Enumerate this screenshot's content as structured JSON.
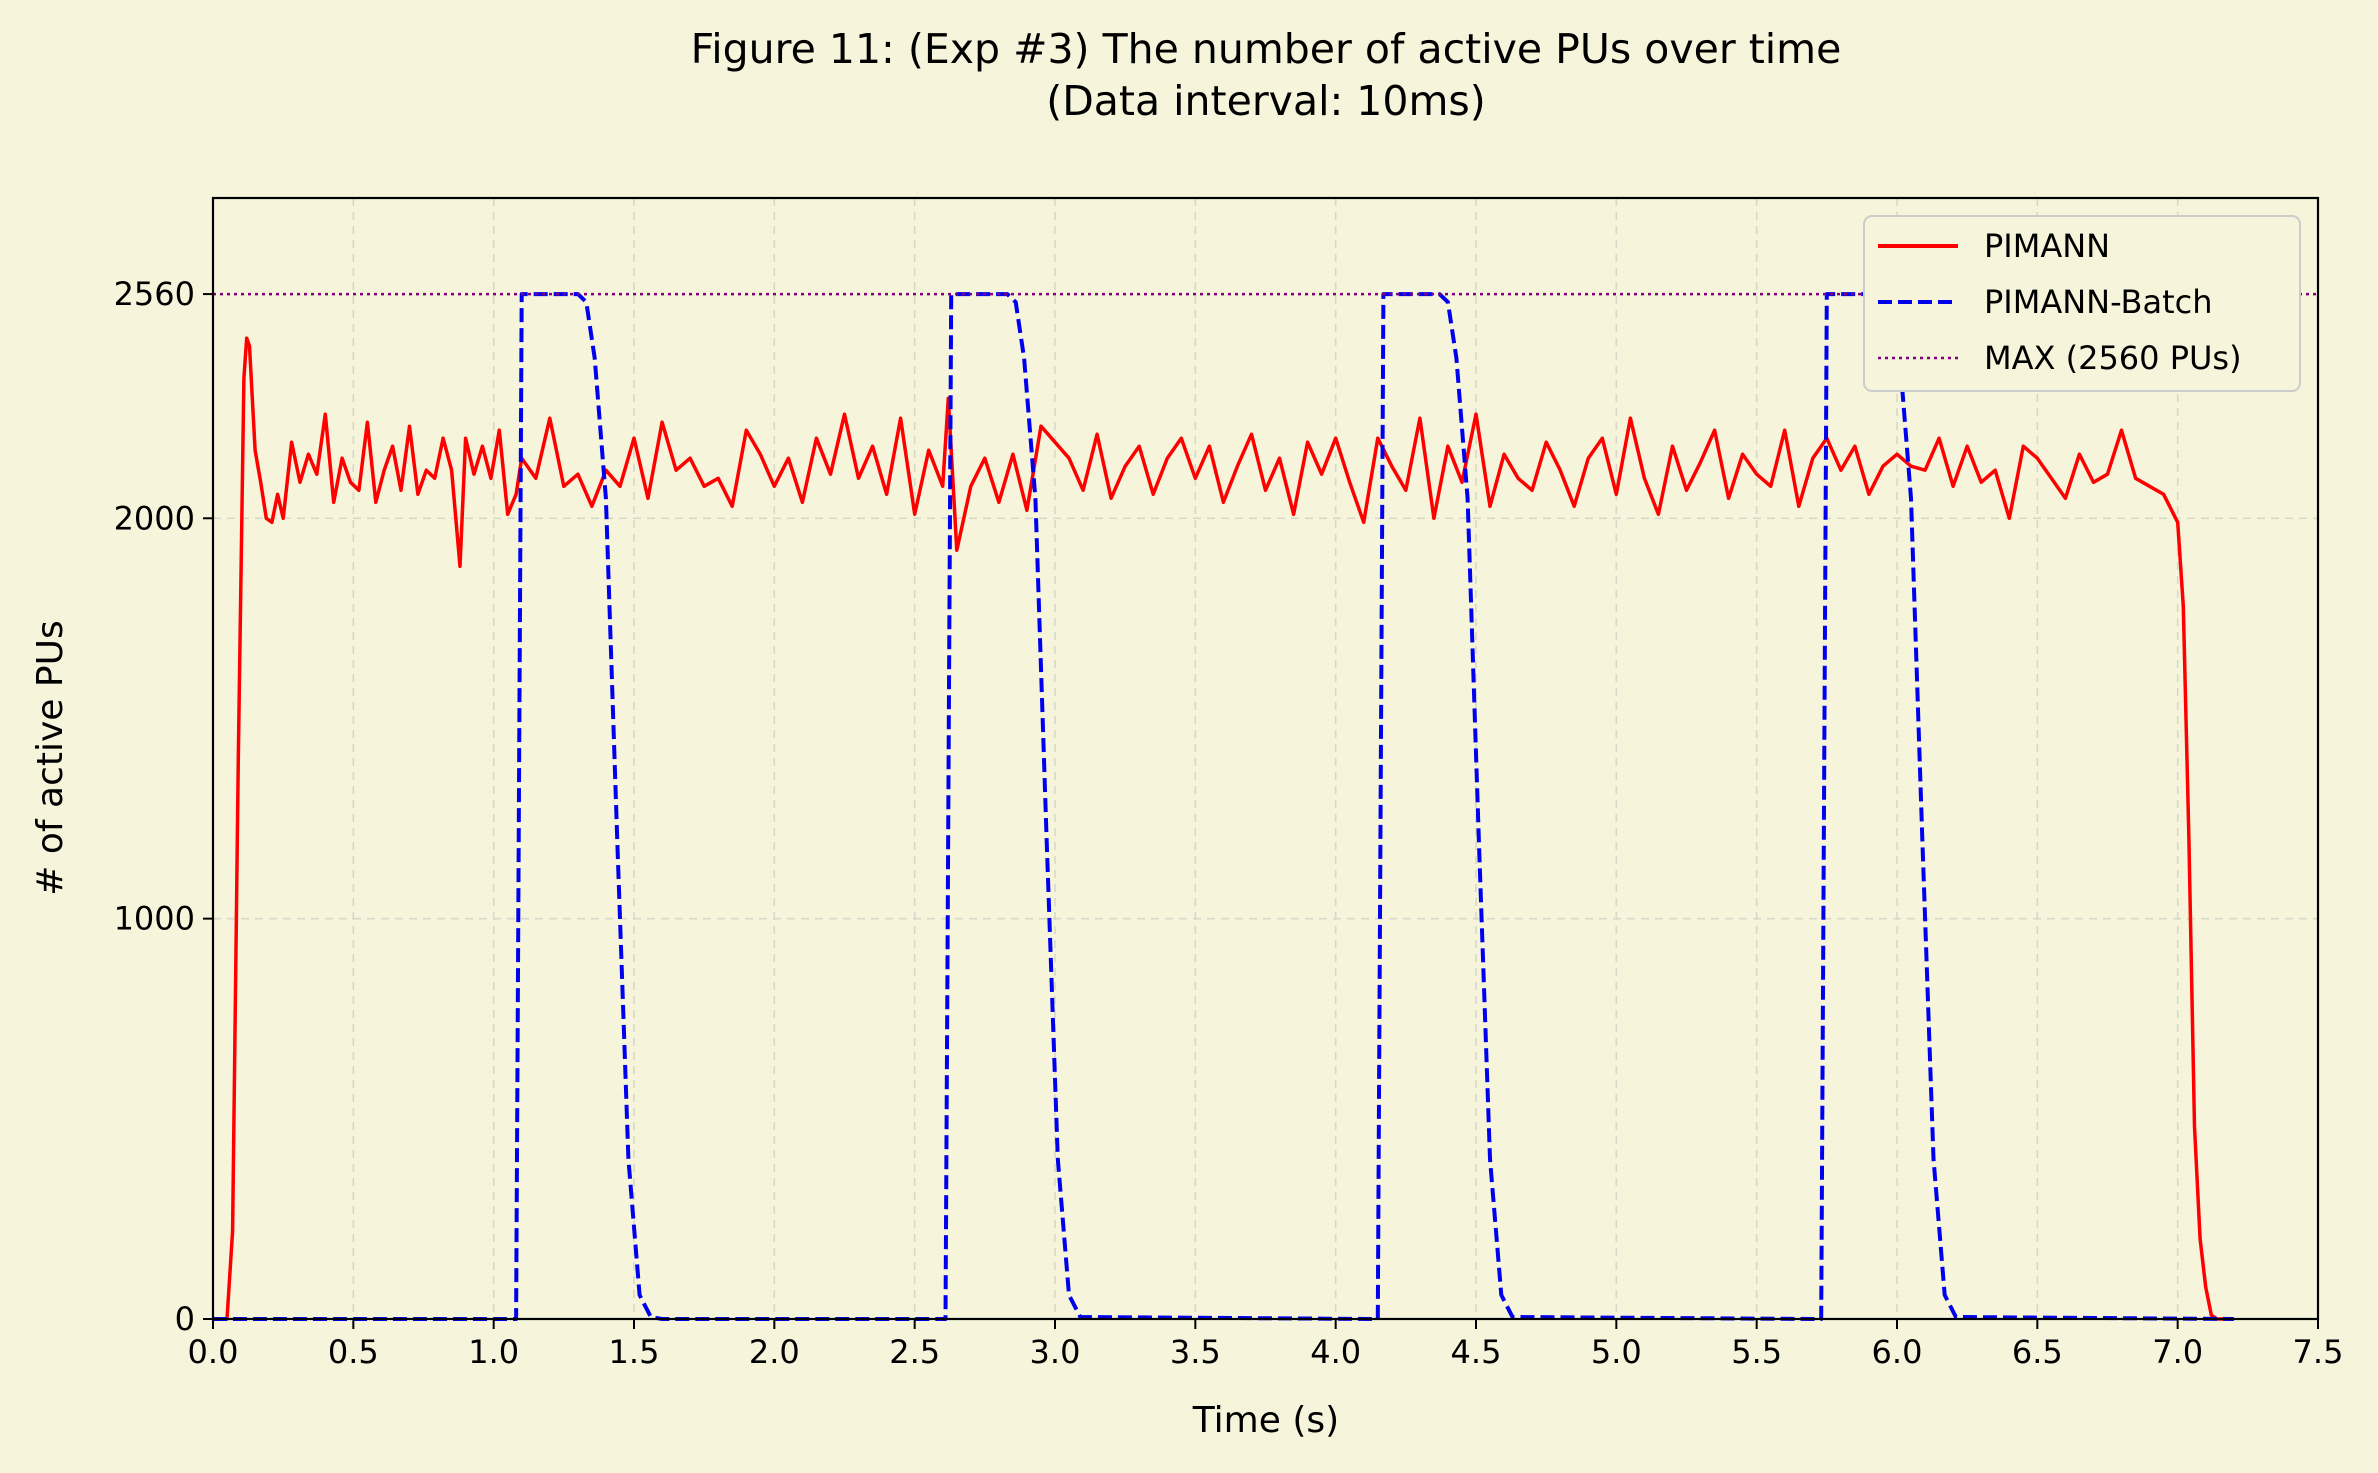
{
  "chart_data": {
    "type": "line",
    "title": "Figure 11: (Exp #3) The number of active PUs over time",
    "subtitle": "(Data interval: 10ms)",
    "xlabel": "Time (s)",
    "ylabel": "# of active PUs",
    "xlim": [
      0,
      7.5
    ],
    "ylim": [
      0,
      2800
    ],
    "xticks": [
      0,
      0.5,
      1,
      1.5,
      2,
      2.5,
      3,
      3.5,
      4,
      4.5,
      5,
      5.5,
      6,
      6.5,
      7,
      7.5
    ],
    "xtick_labels": [
      "0.0",
      "0.5",
      "1.0",
      "1.5",
      "2.0",
      "2.5",
      "3.0",
      "3.5",
      "4.0",
      "4.5",
      "5.0",
      "5.5",
      "6.0",
      "6.5",
      "7.0",
      "7.5"
    ],
    "yticks": [
      0,
      1000,
      2000,
      2560
    ],
    "ytick_labels": [
      "0",
      "1000",
      "2000",
      "2560"
    ],
    "grid": true,
    "legend_position": "top-right",
    "colors": {
      "pimann": "#ff0000",
      "batch": "#0000ee",
      "max": "#800080",
      "background": "#f6f5dc",
      "grid": "#d8d8c8"
    },
    "series": [
      {
        "name": "PIMANN",
        "style": "solid",
        "x": [
          0.0,
          0.05,
          0.07,
          0.09,
          0.11,
          0.12,
          0.13,
          0.15,
          0.17,
          0.19,
          0.21,
          0.23,
          0.25,
          0.28,
          0.31,
          0.34,
          0.37,
          0.4,
          0.43,
          0.46,
          0.49,
          0.52,
          0.55,
          0.58,
          0.61,
          0.64,
          0.67,
          0.7,
          0.73,
          0.76,
          0.79,
          0.82,
          0.85,
          0.88,
          0.9,
          0.93,
          0.96,
          0.99,
          1.02,
          1.05,
          1.08,
          1.1,
          1.15,
          1.2,
          1.25,
          1.3,
          1.35,
          1.4,
          1.45,
          1.5,
          1.55,
          1.6,
          1.65,
          1.7,
          1.75,
          1.8,
          1.85,
          1.9,
          1.95,
          2.0,
          2.05,
          2.1,
          2.15,
          2.2,
          2.25,
          2.3,
          2.35,
          2.4,
          2.45,
          2.5,
          2.55,
          2.6,
          2.62,
          2.65,
          2.7,
          2.75,
          2.8,
          2.85,
          2.9,
          2.95,
          3.0,
          3.05,
          3.1,
          3.15,
          3.2,
          3.25,
          3.3,
          3.35,
          3.4,
          3.45,
          3.5,
          3.55,
          3.6,
          3.65,
          3.7,
          3.75,
          3.8,
          3.85,
          3.9,
          3.95,
          4.0,
          4.05,
          4.1,
          4.15,
          4.2,
          4.25,
          4.3,
          4.35,
          4.4,
          4.45,
          4.5,
          4.55,
          4.6,
          4.65,
          4.7,
          4.75,
          4.8,
          4.85,
          4.9,
          4.95,
          5.0,
          5.05,
          5.1,
          5.15,
          5.2,
          5.25,
          5.3,
          5.35,
          5.4,
          5.45,
          5.5,
          5.55,
          5.6,
          5.65,
          5.7,
          5.75,
          5.8,
          5.85,
          5.9,
          5.95,
          6.0,
          6.05,
          6.1,
          6.15,
          6.2,
          6.25,
          6.3,
          6.35,
          6.4,
          6.45,
          6.5,
          6.55,
          6.6,
          6.65,
          6.7,
          6.75,
          6.8,
          6.85,
          6.9,
          6.95,
          7.0,
          7.02,
          7.04,
          7.06,
          7.08,
          7.1,
          7.12,
          7.14,
          7.16,
          7.2
        ],
        "y": [
          0,
          0,
          220,
          1400,
          2350,
          2450,
          2430,
          2170,
          2090,
          2000,
          1990,
          2060,
          2000,
          2190,
          2090,
          2160,
          2110,
          2260,
          2040,
          2150,
          2090,
          2070,
          2240,
          2040,
          2120,
          2180,
          2070,
          2230,
          2060,
          2120,
          2100,
          2200,
          2120,
          1880,
          2200,
          2110,
          2180,
          2100,
          2220,
          2010,
          2060,
          2150,
          2100,
          2250,
          2080,
          2110,
          2030,
          2120,
          2080,
          2200,
          2050,
          2240,
          2120,
          2150,
          2080,
          2100,
          2030,
          2220,
          2160,
          2080,
          2150,
          2040,
          2200,
          2110,
          2260,
          2100,
          2180,
          2060,
          2250,
          2010,
          2170,
          2080,
          2300,
          1920,
          2080,
          2150,
          2040,
          2160,
          2020,
          2230,
          2190,
          2150,
          2070,
          2210,
          2050,
          2130,
          2180,
          2060,
          2150,
          2200,
          2100,
          2180,
          2040,
          2130,
          2210,
          2070,
          2150,
          2010,
          2190,
          2110,
          2200,
          2090,
          1990,
          2200,
          2130,
          2070,
          2250,
          2000,
          2180,
          2090,
          2260,
          2030,
          2160,
          2100,
          2070,
          2190,
          2120,
          2030,
          2150,
          2200,
          2060,
          2250,
          2100,
          2010,
          2180,
          2070,
          2140,
          2220,
          2050,
          2160,
          2110,
          2080,
          2220,
          2030,
          2150,
          2200,
          2120,
          2180,
          2060,
          2130,
          2160,
          2130,
          2120,
          2200,
          2080,
          2180,
          2090,
          2120,
          2000,
          2180,
          2150,
          2100,
          2050,
          2160,
          2090,
          2110,
          2220,
          2100,
          2080,
          2060,
          1990,
          1780,
          1200,
          480,
          200,
          80,
          10,
          0,
          0,
          0
        ]
      },
      {
        "name": "PIMANN-Batch",
        "style": "dashed",
        "x": [
          0.0,
          1.08,
          1.1,
          1.3,
          1.33,
          1.36,
          1.4,
          1.44,
          1.48,
          1.52,
          1.56,
          1.6,
          2.61,
          2.63,
          2.83,
          2.86,
          2.89,
          2.93,
          2.97,
          3.01,
          3.05,
          3.09,
          4.15,
          4.17,
          4.37,
          4.4,
          4.43,
          4.47,
          4.51,
          4.55,
          4.59,
          4.63,
          5.73,
          5.75,
          5.95,
          5.98,
          6.01,
          6.05,
          6.09,
          6.13,
          6.17,
          6.21,
          7.2
        ],
        "y": [
          0,
          0,
          2560,
          2560,
          2540,
          2400,
          2050,
          1200,
          400,
          60,
          5,
          0,
          0,
          2560,
          2560,
          2540,
          2400,
          2050,
          1200,
          400,
          60,
          5,
          0,
          2560,
          2560,
          2540,
          2400,
          2050,
          1200,
          400,
          60,
          5,
          0,
          2560,
          2560,
          2540,
          2400,
          2050,
          1200,
          400,
          60,
          5,
          0
        ]
      },
      {
        "name": "MAX (2560 PUs)",
        "style": "dotted",
        "y_constant": 2560
      }
    ]
  }
}
